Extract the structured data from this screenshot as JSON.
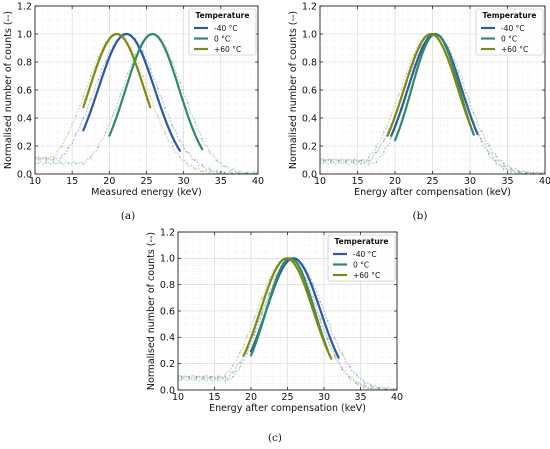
{
  "chart_data": [
    {
      "type": "line",
      "panel_label": "(a)",
      "xlabel": "Measured energy (keV)",
      "ylabel": "Normalised number of counts (--)",
      "xlim": [
        10,
        40
      ],
      "ylim": [
        0.0,
        1.2
      ],
      "xticks": [
        "10",
        "15",
        "20",
        "25",
        "30",
        "35",
        "40"
      ],
      "yticks": [
        "0.0",
        "0.2",
        "0.4",
        "0.6",
        "0.8",
        "1.0",
        "1.2"
      ],
      "grid": true,
      "legend_position": "top-right",
      "legend_title": "Temperature",
      "series": [
        {
          "name": "-40 °C",
          "color": "#2a58a6",
          "peak": 22.3,
          "sigma_fit": 3.8,
          "fit_range": [
            16.5,
            29.5
          ],
          "tail": 0.11
        },
        {
          "name": "0 °C",
          "color": "#2f8a6c",
          "peak": 25.8,
          "sigma_fit": 3.6,
          "fit_range": [
            20.0,
            32.5
          ],
          "tail": 0.08
        },
        {
          "name": "+60 °C",
          "color": "#7d8a12",
          "peak": 21.0,
          "sigma_fit": 3.7,
          "fit_range": [
            16.5,
            25.5
          ],
          "tail": 0.12
        }
      ]
    },
    {
      "type": "line",
      "panel_label": "(b)",
      "xlabel": "Energy after compensation (keV)",
      "ylabel": "Normalised number of counts (--)",
      "xlim": [
        10,
        40
      ],
      "ylim": [
        0.0,
        1.2
      ],
      "xticks": [
        "10",
        "15",
        "20",
        "25",
        "30",
        "35",
        "40"
      ],
      "yticks": [
        "0.0",
        "0.2",
        "0.4",
        "0.6",
        "0.8",
        "1.0",
        "1.2"
      ],
      "grid": true,
      "legend_position": "top-right",
      "legend_title": "Temperature",
      "series": [
        {
          "name": "-40 °C",
          "color": "#2a58a6",
          "peak": 25.3,
          "sigma_fit": 3.6,
          "fit_range": [
            19.5,
            31.0
          ],
          "tail": 0.1
        },
        {
          "name": "0 °C",
          "color": "#2f8a6c",
          "peak": 25.4,
          "sigma_fit": 3.2,
          "fit_range": [
            20.0,
            30.5
          ],
          "tail": 0.08
        },
        {
          "name": "+60 °C",
          "color": "#7d8a12",
          "peak": 24.8,
          "sigma_fit": 3.6,
          "fit_range": [
            19.0,
            30.0
          ],
          "tail": 0.1
        }
      ]
    },
    {
      "type": "line",
      "panel_label": "(c)",
      "xlabel": "Energy after compensation (keV)",
      "ylabel": "Normalised number of counts (--)",
      "xlim": [
        10,
        40
      ],
      "ylim": [
        0.0,
        1.2
      ],
      "xticks": [
        "10",
        "15",
        "20",
        "25",
        "30",
        "35",
        "40"
      ],
      "yticks": [
        "0.0",
        "0.2",
        "0.4",
        "0.6",
        "0.8",
        "1.0",
        "1.2"
      ],
      "grid": true,
      "legend_position": "top-right",
      "legend_title": "Temperature",
      "series": [
        {
          "name": "-40 °C",
          "color": "#2a58a6",
          "peak": 25.8,
          "sigma_fit": 3.7,
          "fit_range": [
            20.0,
            32.0
          ],
          "tail": 0.1
        },
        {
          "name": "0 °C",
          "color": "#2f8a6c",
          "peak": 25.4,
          "sigma_fit": 3.3,
          "fit_range": [
            20.0,
            30.5
          ],
          "tail": 0.08
        },
        {
          "name": "+60 °C",
          "color": "#7d8a12",
          "peak": 24.9,
          "sigma_fit": 3.6,
          "fit_range": [
            19.0,
            31.0
          ],
          "tail": 0.1
        }
      ]
    }
  ]
}
